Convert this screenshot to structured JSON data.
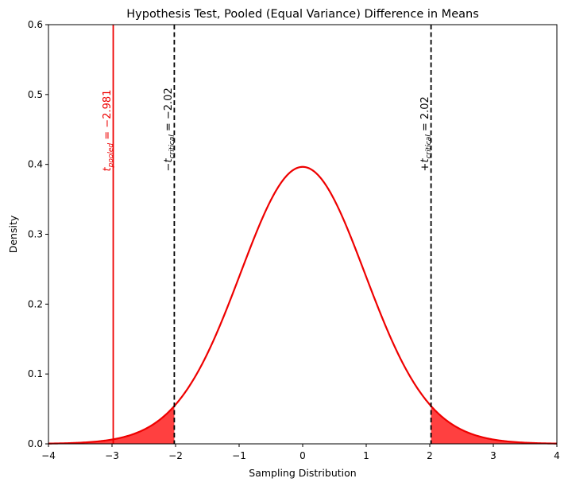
{
  "chart_data": {
    "type": "line",
    "title": "Hypothesis Test, Pooled (Equal Variance) Difference in Means",
    "xlabel": "Sampling Distribution",
    "ylabel": "Density",
    "xlim": [
      -4,
      4
    ],
    "ylim": [
      0,
      0.6
    ],
    "xticks": [
      -4,
      -3,
      -2,
      -1,
      0,
      1,
      2,
      3,
      4
    ],
    "xtick_labels": [
      "−4",
      "−3",
      "−2",
      "−1",
      "0",
      "1",
      "2",
      "3",
      "4"
    ],
    "yticks": [
      0.0,
      0.1,
      0.2,
      0.3,
      0.4,
      0.5,
      0.6
    ],
    "ytick_labels": [
      "0.0",
      "0.1",
      "0.2",
      "0.3",
      "0.4",
      "0.5",
      "0.6"
    ],
    "grid": false,
    "series": [
      {
        "distribution": "t",
        "degrees_of_freedom": 40,
        "color": "#ee0000",
        "fill_color": "#ff4040",
        "shaded_tails": [
          [
            -4,
            -2.02
          ],
          [
            2.02,
            4
          ]
        ]
      }
    ],
    "vlines": [
      {
        "x": -2.02,
        "style": "dashed",
        "color": "#000000"
      },
      {
        "x": 2.02,
        "style": "dashed",
        "color": "#000000"
      },
      {
        "x": -2.981,
        "style": "solid",
        "color": "#ee0000"
      }
    ],
    "annotations": {
      "t_pooled": {
        "symbol": "t",
        "subscript": "pooled",
        "text": " = −2.981",
        "color": "#ee0000"
      },
      "neg_critical": {
        "prefix": "−",
        "symbol": "t",
        "subscript": "critical",
        "text": " = −2.02",
        "color": "#000000"
      },
      "pos_critical": {
        "prefix": "+",
        "symbol": "t",
        "subscript": "critical",
        "text": " = 2.02",
        "color": "#000000"
      }
    }
  }
}
